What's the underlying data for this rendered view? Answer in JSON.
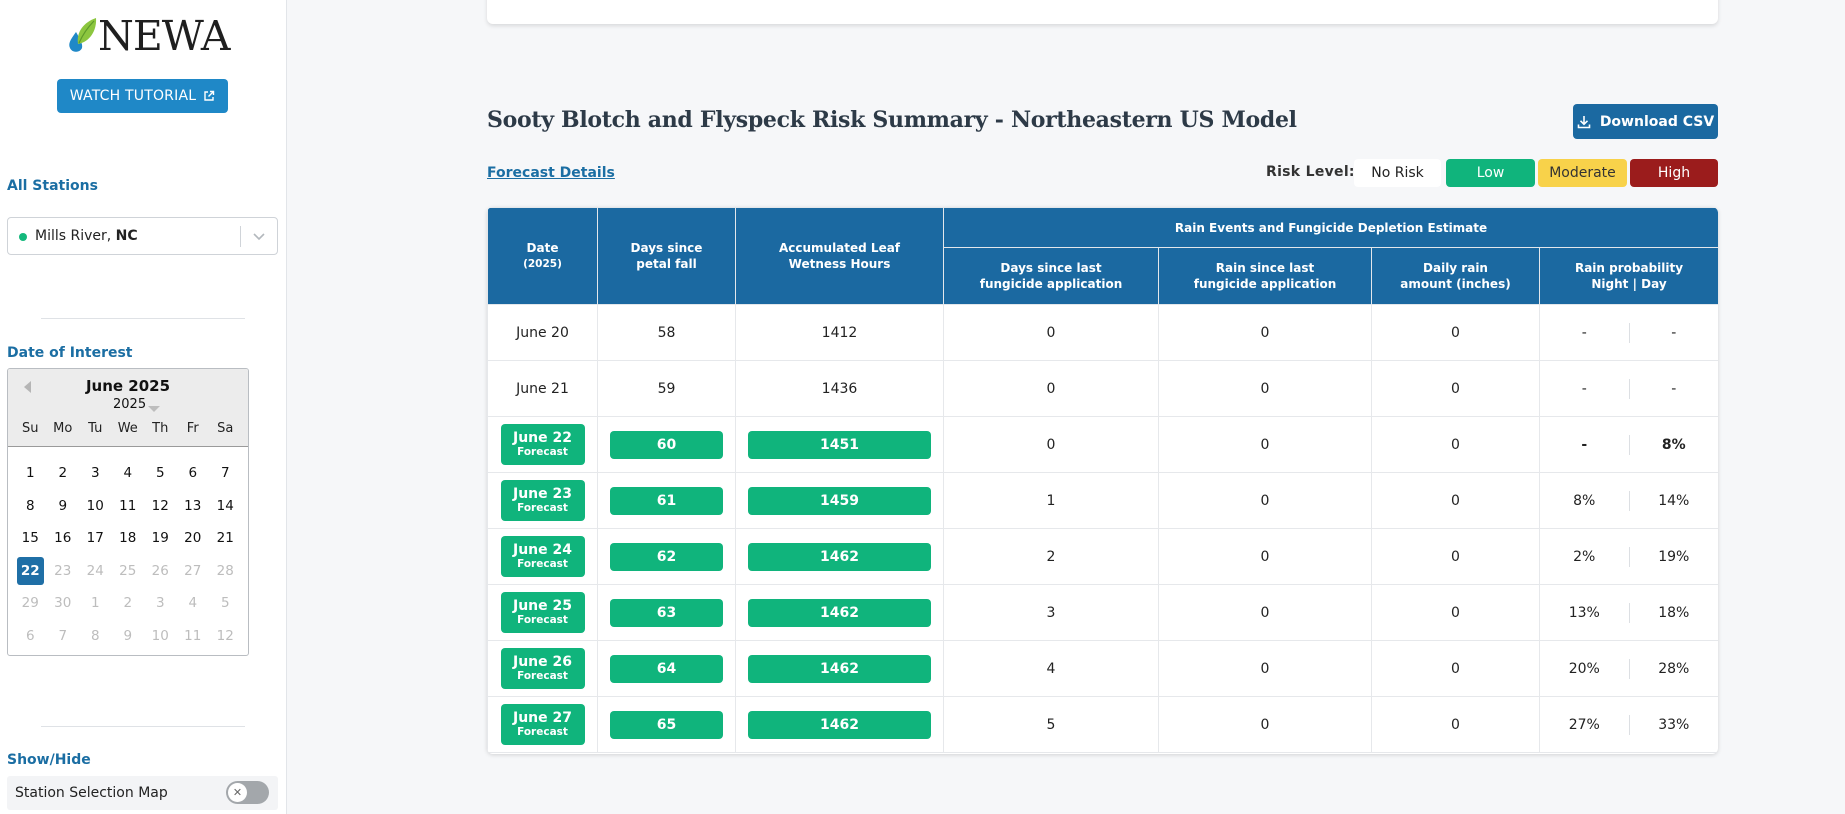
{
  "sidebar": {
    "logo_text": "NEWA",
    "tutorial_label": "WATCH TUTORIAL",
    "stations_label": "All Stations",
    "station_name": "Mills River, ",
    "station_state": "NC",
    "date_label": "Date of Interest",
    "calendar": {
      "month_title": "June 2025",
      "year": "2025",
      "dows": [
        "Su",
        "Mo",
        "Tu",
        "We",
        "Th",
        "Fr",
        "Sa"
      ],
      "weeks": [
        [
          {
            "d": "1"
          },
          {
            "d": "2"
          },
          {
            "d": "3"
          },
          {
            "d": "4"
          },
          {
            "d": "5"
          },
          {
            "d": "6"
          },
          {
            "d": "7"
          }
        ],
        [
          {
            "d": "8"
          },
          {
            "d": "9"
          },
          {
            "d": "10"
          },
          {
            "d": "11"
          },
          {
            "d": "12"
          },
          {
            "d": "13"
          },
          {
            "d": "14"
          }
        ],
        [
          {
            "d": "15"
          },
          {
            "d": "16"
          },
          {
            "d": "17"
          },
          {
            "d": "18"
          },
          {
            "d": "19"
          },
          {
            "d": "20"
          },
          {
            "d": "21"
          }
        ],
        [
          {
            "d": "22",
            "sel": true
          },
          {
            "d": "23",
            "muted": true
          },
          {
            "d": "24",
            "muted": true
          },
          {
            "d": "25",
            "muted": true
          },
          {
            "d": "26",
            "muted": true
          },
          {
            "d": "27",
            "muted": true
          },
          {
            "d": "28",
            "muted": true
          }
        ],
        [
          {
            "d": "29",
            "muted": true
          },
          {
            "d": "30",
            "muted": true
          },
          {
            "d": "1",
            "muted": true
          },
          {
            "d": "2",
            "muted": true
          },
          {
            "d": "3",
            "muted": true
          },
          {
            "d": "4",
            "muted": true
          },
          {
            "d": "5",
            "muted": true
          }
        ],
        [
          {
            "d": "6",
            "muted": true
          },
          {
            "d": "7",
            "muted": true
          },
          {
            "d": "8",
            "muted": true
          },
          {
            "d": "9",
            "muted": true
          },
          {
            "d": "10",
            "muted": true
          },
          {
            "d": "11",
            "muted": true
          },
          {
            "d": "12",
            "muted": true
          }
        ]
      ]
    },
    "showhide_label": "Show/Hide",
    "map_toggle_label": "Station Selection Map",
    "toggle_off_glyph": "✕"
  },
  "main": {
    "title": "Sooty Blotch and Flyspeck Risk Summary - Northeastern US Model",
    "download_label": "Download CSV",
    "forecast_link": "Forecast Details",
    "risk_level_label": "Risk Level:",
    "risk_levels": [
      {
        "label": "No Risk",
        "bg": "#ffffff",
        "fg": "#222222"
      },
      {
        "label": "Low",
        "bg": "#10b47c",
        "fg": "#ffffff"
      },
      {
        "label": "Moderate",
        "bg": "#f8d24a",
        "fg": "#333333"
      },
      {
        "label": "High",
        "bg": "#9b1c1c",
        "fg": "#ffffff"
      }
    ],
    "colors": {
      "header_blue": "#1b69a1",
      "forecast_green": "#10b47c"
    }
  },
  "table": {
    "h_date": "Date",
    "h_date_sub": "(2025)",
    "h_days_petal": "Days since petal fall",
    "h_leaf_wetness": "Accumulated Leaf Wetness Hours",
    "h_group": "Rain Events and Fungicide Depletion Estimate",
    "h_days_fungicide": "Days since last fungicide application",
    "h_rain_fungicide": "Rain since last fungicide application",
    "h_daily_rain": "Daily rain amount (inches)",
    "h_rain_prob": "Rain probability",
    "h_rain_prob_sub": "Night | Day",
    "rows": [
      {
        "date": "June 20",
        "forecast": false,
        "days": "58",
        "lwh": "1412",
        "dsf": "0",
        "rsf": "0",
        "rain": "0",
        "night": "-",
        "day": "-",
        "bold": false
      },
      {
        "date": "June 21",
        "forecast": false,
        "days": "59",
        "lwh": "1436",
        "dsf": "0",
        "rsf": "0",
        "rain": "0",
        "night": "-",
        "day": "-",
        "bold": false
      },
      {
        "date": "June 22",
        "forecast": true,
        "days": "60",
        "lwh": "1451",
        "dsf": "0",
        "rsf": "0",
        "rain": "0",
        "night": "-",
        "day": "8%",
        "bold": true
      },
      {
        "date": "June 23",
        "forecast": true,
        "days": "61",
        "lwh": "1459",
        "dsf": "1",
        "rsf": "0",
        "rain": "0",
        "night": "8%",
        "day": "14%",
        "bold": false
      },
      {
        "date": "June 24",
        "forecast": true,
        "days": "62",
        "lwh": "1462",
        "dsf": "2",
        "rsf": "0",
        "rain": "0",
        "night": "2%",
        "day": "19%",
        "bold": false
      },
      {
        "date": "June 25",
        "forecast": true,
        "days": "63",
        "lwh": "1462",
        "dsf": "3",
        "rsf": "0",
        "rain": "0",
        "night": "13%",
        "day": "18%",
        "bold": false
      },
      {
        "date": "June 26",
        "forecast": true,
        "days": "64",
        "lwh": "1462",
        "dsf": "4",
        "rsf": "0",
        "rain": "0",
        "night": "20%",
        "day": "28%",
        "bold": false
      },
      {
        "date": "June 27",
        "forecast": true,
        "days": "65",
        "lwh": "1462",
        "dsf": "5",
        "rsf": "0",
        "rain": "0",
        "night": "27%",
        "day": "33%",
        "bold": false
      }
    ],
    "forecast_word": "Forecast"
  }
}
